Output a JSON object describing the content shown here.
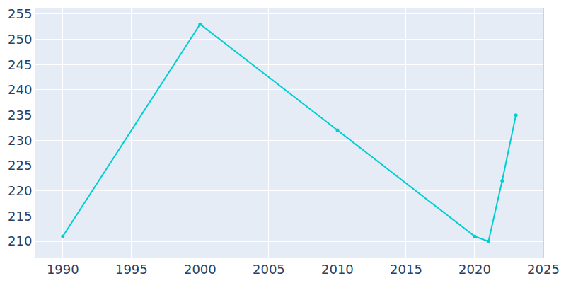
{
  "chart_data": {
    "type": "line",
    "x": [
      1990,
      2000,
      2010,
      2020,
      2021,
      2022,
      2023
    ],
    "values": [
      211,
      253,
      232,
      211,
      210,
      222,
      235
    ],
    "color": "#00ced1",
    "marker": "circle",
    "xlim": [
      1988,
      2025
    ],
    "xticks": [
      1990,
      1995,
      2000,
      2005,
      2010,
      2015,
      2020,
      2025
    ],
    "ylim": [
      206.8,
      256.1
    ],
    "yticks": [
      210,
      215,
      220,
      225,
      230,
      235,
      240,
      245,
      250,
      255
    ],
    "grid": true
  }
}
